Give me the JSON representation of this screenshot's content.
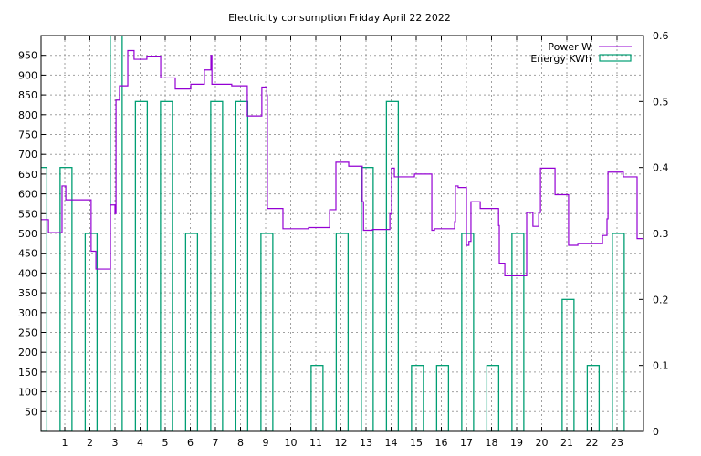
{
  "chart_data": {
    "type": "line",
    "title": "Electricity consumption Friday April 22 2022",
    "xlabel": "",
    "ylabel": "",
    "y2label": "",
    "xlim": [
      0,
      24
    ],
    "ylim": [
      0,
      1000
    ],
    "y2lim": [
      0,
      0.6
    ],
    "grid": true,
    "legend_position": "top-right",
    "x_ticks": [
      1,
      2,
      3,
      4,
      5,
      6,
      7,
      8,
      9,
      10,
      11,
      12,
      13,
      14,
      15,
      16,
      17,
      18,
      19,
      20,
      21,
      22,
      23
    ],
    "y_ticks": [
      50,
      100,
      150,
      200,
      250,
      300,
      350,
      400,
      450,
      500,
      550,
      600,
      650,
      700,
      750,
      800,
      850,
      900,
      950
    ],
    "y2_ticks": [
      "0",
      "0.1",
      "0.2",
      "0.3",
      "0.4",
      "0.5",
      "0.6"
    ],
    "series": [
      {
        "name": "Power W",
        "style": "steps",
        "color": "#9400d3",
        "axis": "left",
        "points": [
          [
            0,
            535
          ],
          [
            0.35,
            502
          ],
          [
            0.89,
            620
          ],
          [
            1.04,
            585
          ],
          [
            2.05,
            455
          ],
          [
            2.24,
            410
          ],
          [
            2.82,
            572
          ],
          [
            3.0,
            550
          ],
          [
            3.04,
            837
          ],
          [
            3.18,
            873
          ],
          [
            3.51,
            962
          ],
          [
            3.76,
            940
          ],
          [
            4.27,
            948
          ],
          [
            4.82,
            893
          ],
          [
            5.4,
            865
          ],
          [
            6.02,
            877
          ],
          [
            6.56,
            913
          ],
          [
            6.82,
            950
          ],
          [
            6.86,
            877
          ],
          [
            7.65,
            873
          ],
          [
            8.27,
            797
          ],
          [
            8.85,
            870
          ],
          [
            9.05,
            850
          ],
          [
            9.07,
            563
          ],
          [
            9.69,
            512
          ],
          [
            10.71,
            515
          ],
          [
            11.55,
            560
          ],
          [
            11.8,
            680
          ],
          [
            12.31,
            670
          ],
          [
            12.85,
            580
          ],
          [
            12.9,
            508
          ],
          [
            13.26,
            510
          ],
          [
            13.95,
            550
          ],
          [
            14.02,
            665
          ],
          [
            14.13,
            643
          ],
          [
            14.93,
            650
          ],
          [
            15.62,
            508
          ],
          [
            15.73,
            512
          ],
          [
            16.53,
            530
          ],
          [
            16.56,
            620
          ],
          [
            16.67,
            616
          ],
          [
            17.0,
            470
          ],
          [
            17.1,
            480
          ],
          [
            17.18,
            580
          ],
          [
            17.55,
            563
          ],
          [
            18.28,
            520
          ],
          [
            18.31,
            425
          ],
          [
            18.53,
            393
          ],
          [
            19.4,
            553
          ],
          [
            19.65,
            518
          ],
          [
            19.88,
            553
          ],
          [
            19.95,
            665
          ],
          [
            20.53,
            598
          ],
          [
            21.07,
            470
          ],
          [
            21.44,
            475
          ],
          [
            22.42,
            495
          ],
          [
            22.6,
            537
          ],
          [
            22.64,
            655
          ],
          [
            23.25,
            643
          ],
          [
            23.8,
            487
          ]
        ]
      },
      {
        "name": "Energy KWh",
        "style": "boxes",
        "color": "#009e73",
        "axis": "right",
        "categories": [
          0,
          1,
          2,
          3,
          4,
          5,
          6,
          7,
          8,
          9,
          10,
          11,
          12,
          13,
          14,
          15,
          16,
          17,
          18,
          19,
          20,
          21,
          22,
          23
        ],
        "values": [
          0.4,
          0.4,
          0.3,
          0.7,
          0.5,
          0.5,
          0.3,
          0.5,
          0.5,
          0.3,
          0,
          0.1,
          0.3,
          0.4,
          0.5,
          0.1,
          0.1,
          0.3,
          0.1,
          0.3,
          0,
          0.2,
          0.1,
          0.3
        ]
      }
    ]
  }
}
